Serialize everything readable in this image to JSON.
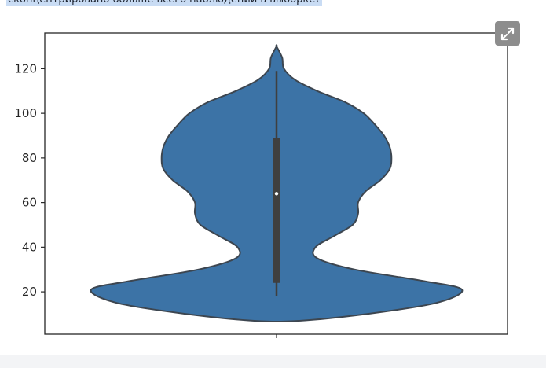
{
  "page": {
    "question_text": "сконцентрировано больше всего наблюдений в выборке?"
  },
  "toolbar": {
    "expand_icon": "expand-arrows-icon"
  },
  "colors": {
    "violin_fill": "#3c73a6",
    "violin_edge": "#3d4650",
    "box": "#3f3f3f",
    "median": "#ffffff",
    "axis": "#262626",
    "question_highlight": "#c9dcf4",
    "expand_button": "#8d8d8d"
  },
  "chart_data": {
    "type": "violin",
    "title": "",
    "xlabel": "",
    "ylabel": "",
    "ylim": [
      1,
      136
    ],
    "yticks": [
      20,
      40,
      60,
      80,
      100,
      120
    ],
    "ytick_labels": [
      "20",
      "40",
      "60",
      "80",
      "100",
      "120"
    ],
    "xticks": [
      ""
    ],
    "grid": false,
    "violin": {
      "min_extent": 7,
      "max_extent": 130,
      "peak_density_at": 21,
      "relative_width_profile": [
        {
          "y": 7,
          "w": 0.12
        },
        {
          "y": 10,
          "w": 0.48
        },
        {
          "y": 15,
          "w": 0.86
        },
        {
          "y": 21,
          "w": 1.0
        },
        {
          "y": 25,
          "w": 0.78
        },
        {
          "y": 30,
          "w": 0.42
        },
        {
          "y": 35,
          "w": 0.22
        },
        {
          "y": 40,
          "w": 0.21
        },
        {
          "y": 45,
          "w": 0.31
        },
        {
          "y": 50,
          "w": 0.41
        },
        {
          "y": 55,
          "w": 0.44
        },
        {
          "y": 60,
          "w": 0.44
        },
        {
          "y": 65,
          "w": 0.48
        },
        {
          "y": 70,
          "w": 0.56
        },
        {
          "y": 75,
          "w": 0.61
        },
        {
          "y": 80,
          "w": 0.62
        },
        {
          "y": 85,
          "w": 0.61
        },
        {
          "y": 90,
          "w": 0.58
        },
        {
          "y": 95,
          "w": 0.53
        },
        {
          "y": 100,
          "w": 0.47
        },
        {
          "y": 105,
          "w": 0.37
        },
        {
          "y": 110,
          "w": 0.22
        },
        {
          "y": 115,
          "w": 0.1
        },
        {
          "y": 120,
          "w": 0.04
        },
        {
          "y": 125,
          "w": 0.03
        },
        {
          "y": 130,
          "w": 0.0
        }
      ],
      "box": {
        "whisker_low": 18,
        "q1": 24,
        "median": 64,
        "q3": 89,
        "whisker_high": 119
      }
    }
  }
}
